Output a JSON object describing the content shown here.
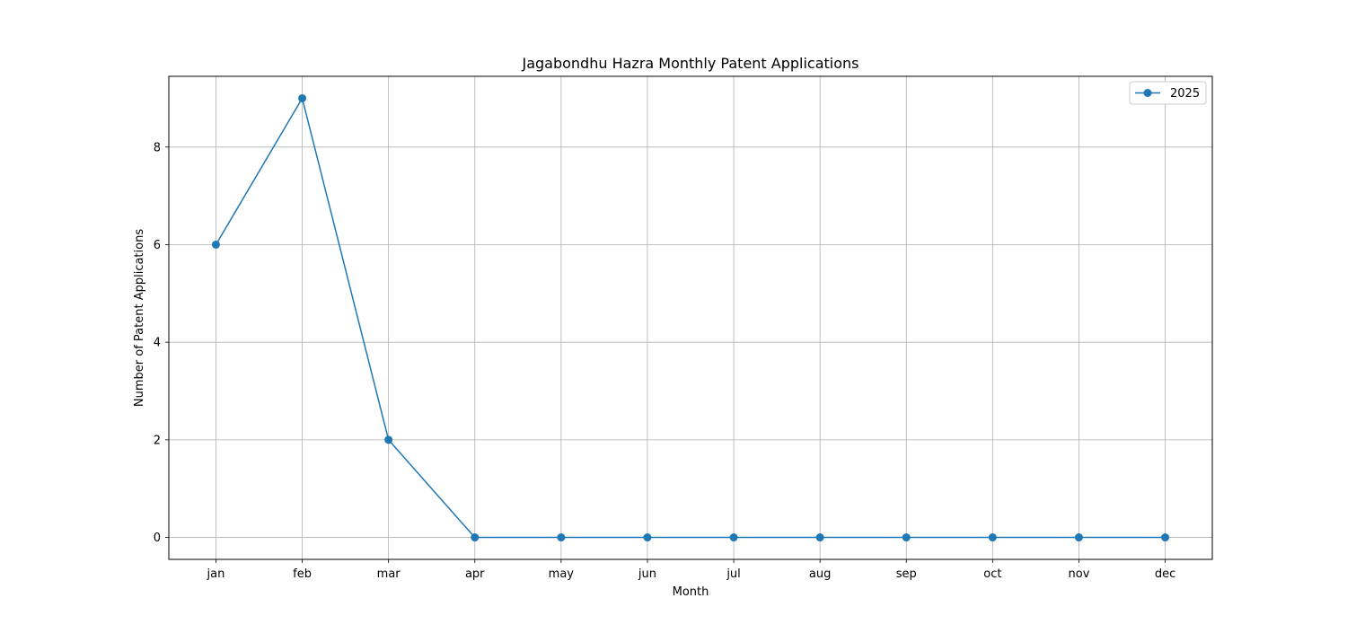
{
  "chart_data": {
    "type": "line",
    "title": "Jagabondhu Hazra Monthly Patent Applications",
    "xlabel": "Month",
    "ylabel": "Number of Patent Applications",
    "categories": [
      "jan",
      "feb",
      "mar",
      "apr",
      "may",
      "jun",
      "jul",
      "aug",
      "sep",
      "oct",
      "nov",
      "dec"
    ],
    "series": [
      {
        "name": "2025",
        "values": [
          6,
          9,
          2,
          0,
          0,
          0,
          0,
          0,
          0,
          0,
          0,
          0
        ],
        "color": "#1f77b4",
        "marker": "circle"
      }
    ],
    "yticks": [
      0,
      2,
      4,
      6,
      8
    ],
    "ylim": [
      -0.45,
      9.45
    ],
    "grid": true,
    "legend_position": "top-right"
  }
}
